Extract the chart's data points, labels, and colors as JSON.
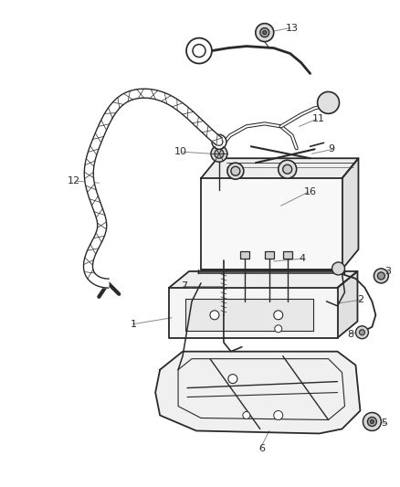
{
  "background_color": "#ffffff",
  "line_color": "#2a2a2a",
  "label_color": "#2a2a2a",
  "leader_color": "#888888",
  "fig_width": 4.38,
  "fig_height": 5.33,
  "dpi": 100
}
